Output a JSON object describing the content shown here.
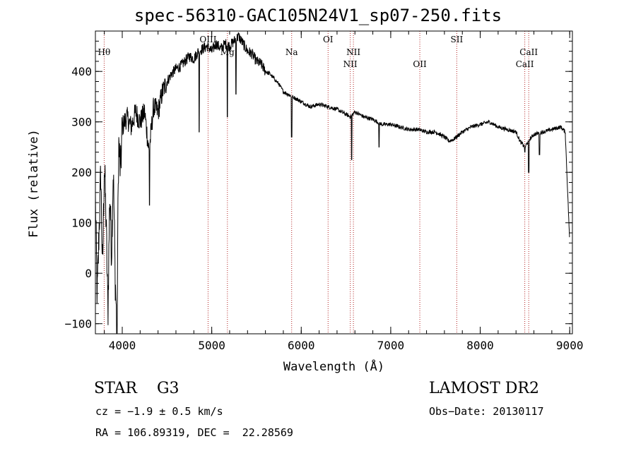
{
  "chart_data": {
    "type": "line",
    "title": "spec-56310-GAC105N24V1_sp07-250.fits",
    "xlabel": "Wavelength (Å)",
    "ylabel": "Flux (relative)",
    "xlim": [
      3700,
      9030
    ],
    "ylim": [
      -120,
      480
    ],
    "xticks": [
      4000,
      5000,
      6000,
      7000,
      8000,
      9000
    ],
    "yticks": [
      -100,
      0,
      100,
      200,
      300,
      400
    ],
    "grid": false,
    "line_color": "#000000",
    "marker_color": "#b22222",
    "spectral_lines": [
      {
        "label": "Hθ",
        "x": 3798,
        "tier": 1
      },
      {
        "label": "OIII",
        "x": 4959,
        "tier": 0
      },
      {
        "label": "Mg",
        "x": 5175,
        "tier": 1
      },
      {
        "label": "Na",
        "x": 5893,
        "tier": 1
      },
      {
        "label": "OI",
        "x": 6300,
        "tier": 0
      },
      {
        "label": "NII",
        "x": 6548,
        "tier": 2
      },
      {
        "label": "NII",
        "x": 6583,
        "tier": 1
      },
      {
        "label": "OII",
        "x": 7325,
        "tier": 2
      },
      {
        "label": "SII",
        "x": 7738,
        "tier": 0
      },
      {
        "label": "CaII",
        "x": 8498,
        "tier": 2
      },
      {
        "label": "CaII",
        "x": 8542,
        "tier": 1
      }
    ],
    "series": [
      {
        "x": [
          3700,
          3720,
          3740,
          3760,
          3780,
          3800,
          3820,
          3840,
          3860,
          3880,
          3900,
          3920,
          3940,
          3960,
          3980,
          4000,
          4050,
          4100,
          4150,
          4200,
          4250,
          4300,
          4350,
          4400,
          4450,
          4500,
          4550,
          4600,
          4650,
          4700,
          4750,
          4800,
          4850,
          4900,
          4950,
          5000,
          5050,
          5100,
          5150,
          5200,
          5250,
          5300,
          5350,
          5400,
          5450,
          5500,
          5550,
          5600,
          5650,
          5700,
          5750,
          5800,
          5850,
          5900,
          5950,
          6000,
          6100,
          6200,
          6300,
          6400,
          6500,
          6550,
          6600,
          6700,
          6800,
          6900,
          7000,
          7100,
          7200,
          7300,
          7400,
          7500,
          7600,
          7650,
          7700,
          7800,
          7900,
          8000,
          8100,
          8200,
          8300,
          8400,
          8450,
          8500,
          8550,
          8600,
          8700,
          8800,
          8900,
          8950,
          9000
        ],
        "y": [
          150,
          -50,
          80,
          200,
          0,
          220,
          100,
          -80,
          160,
          40,
          210,
          0,
          -110,
          260,
          200,
          290,
          310,
          290,
          320,
          300,
          320,
          240,
          330,
          320,
          360,
          380,
          395,
          405,
          410,
          420,
          430,
          425,
          440,
          445,
          450,
          440,
          455,
          445,
          455,
          450,
          460,
          470,
          455,
          440,
          435,
          420,
          415,
          400,
          395,
          385,
          375,
          360,
          355,
          350,
          345,
          340,
          330,
          335,
          330,
          325,
          315,
          310,
          320,
          310,
          305,
          295,
          295,
          290,
          285,
          285,
          280,
          280,
          270,
          262,
          265,
          280,
          290,
          295,
          300,
          290,
          285,
          280,
          260,
          250,
          265,
          275,
          280,
          285,
          290,
          280,
          60
        ]
      }
    ],
    "dips": [
      {
        "x": 3940,
        "y": -120
      },
      {
        "x": 4305,
        "y": 135
      },
      {
        "x": 4860,
        "y": 280
      },
      {
        "x": 5175,
        "y": 310
      },
      {
        "x": 5270,
        "y": 355
      },
      {
        "x": 5893,
        "y": 270
      },
      {
        "x": 6563,
        "y": 225
      },
      {
        "x": 6870,
        "y": 250
      },
      {
        "x": 8498,
        "y": 240
      },
      {
        "x": 8542,
        "y": 200
      },
      {
        "x": 8662,
        "y": 235
      }
    ]
  },
  "info": {
    "object_class": "STAR    G3",
    "survey": "LAMOST DR2",
    "velocity": "cz = −1.9 ± 0.5 km/s",
    "obs_date": "Obs−Date: 20130117",
    "coords": "RA = 106.89319, DEC =  22.28569"
  }
}
